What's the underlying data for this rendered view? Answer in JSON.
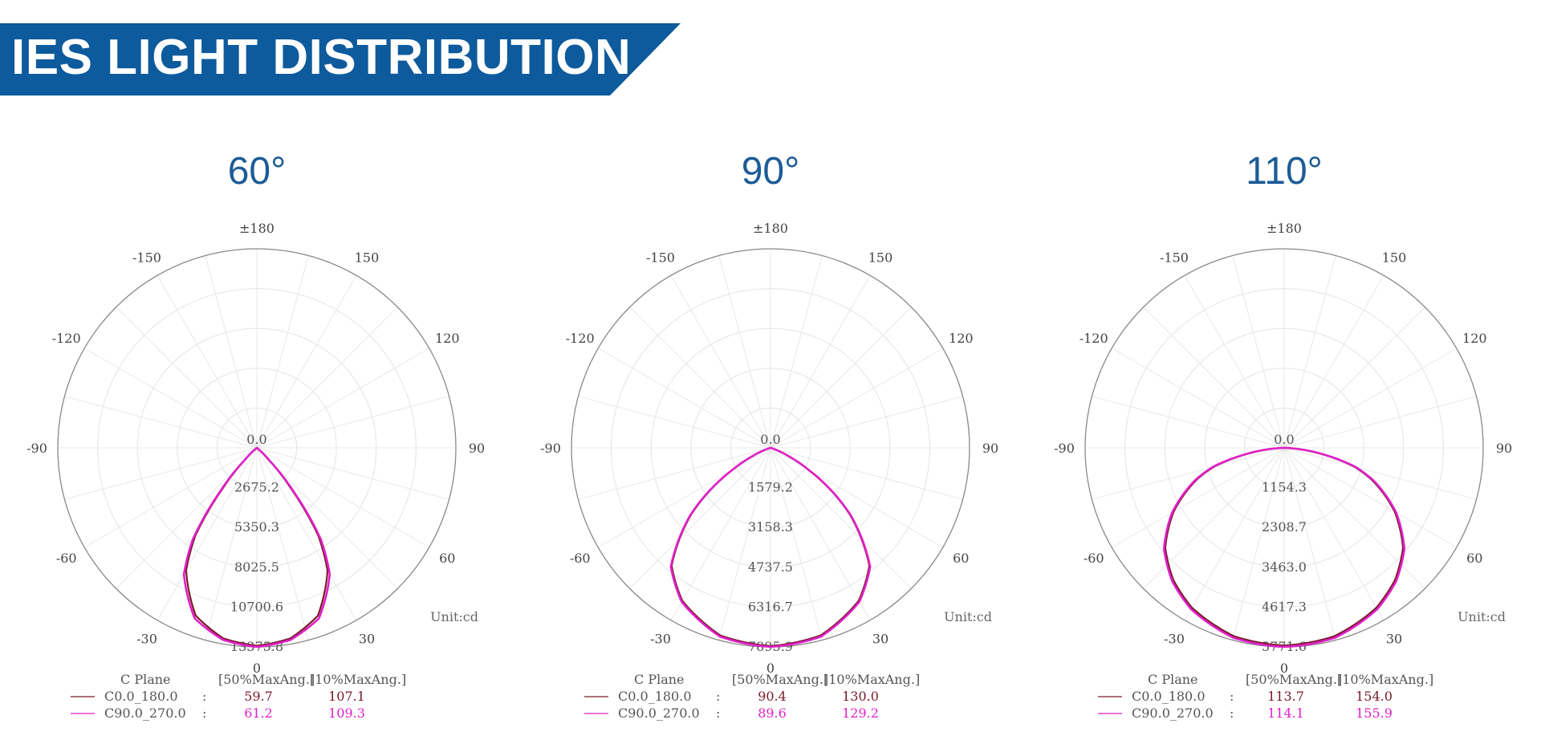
{
  "header": {
    "title": "IES LIGHT DISTRIBUTION"
  },
  "colors": {
    "banner": "#0d5a9c",
    "c0_series": "#7a1a2a",
    "c90_series": "#e020c8",
    "title_blue": "#1d5c96"
  },
  "chart_data": [
    {
      "type": "polar",
      "title": "60°",
      "angle_labels": [
        "±180",
        "150",
        "120",
        "90",
        "60",
        "30",
        "0",
        "-30",
        "-60",
        "-90",
        "-120",
        "-150"
      ],
      "radial_ticks": [
        "0.0",
        "2675.2",
        "5350.3",
        "8025.5",
        "10700.6",
        "13375.8"
      ],
      "rmax": 13375.8,
      "unit": "Unit:cd",
      "legend": {
        "header": [
          "C Plane",
          "[50%MaxAng.]",
          "[10%MaxAng.]"
        ],
        "rows": [
          {
            "name": "C0.0_180.0",
            "sep": ":",
            "half": "59.7",
            "tenth": "107.1"
          },
          {
            "name": "C90.0_270.0",
            "sep": ":",
            "half": "61.2",
            "tenth": "109.3"
          }
        ]
      },
      "series": [
        {
          "name": "C0.0_180.0",
          "curve": [
            [
              0,
              13300
            ],
            [
              10,
              13000
            ],
            [
              20,
              12000
            ],
            [
              30,
              9500
            ],
            [
              35,
              7200
            ],
            [
              40,
              3600
            ],
            [
              45,
              1000
            ],
            [
              50,
              0
            ]
          ]
        },
        {
          "name": "C90.0_270.0",
          "curve": [
            [
              0,
              13375
            ],
            [
              10,
              13100
            ],
            [
              20,
              12200
            ],
            [
              30,
              9800
            ],
            [
              35,
              7500
            ],
            [
              40,
              3900
            ],
            [
              45,
              1200
            ],
            [
              51,
              0
            ]
          ]
        }
      ]
    },
    {
      "type": "polar",
      "title": "90°",
      "angle_labels": [
        "±180",
        "150",
        "120",
        "90",
        "60",
        "30",
        "0",
        "-30",
        "-60",
        "-90",
        "-120",
        "-150"
      ],
      "radial_ticks": [
        "0.0",
        "1579.2",
        "3158.3",
        "4737.5",
        "6316.7",
        "7895.9"
      ],
      "rmax": 7895.9,
      "unit": "Unit:cd",
      "legend": {
        "header": [
          "C Plane",
          "[50%MaxAng.]",
          "[10%MaxAng.]"
        ],
        "rows": [
          {
            "name": "C0.0_180.0",
            "sep": ":",
            "half": "90.4",
            "tenth": "130.0"
          },
          {
            "name": "C90.0_270.0",
            "sep": ":",
            "half": "89.6",
            "tenth": "129.2"
          }
        ]
      },
      "series": [
        {
          "name": "C0.0_180.0",
          "curve": [
            [
              0,
              7860
            ],
            [
              15,
              7700
            ],
            [
              30,
              7000
            ],
            [
              40,
              6100
            ],
            [
              50,
              4100
            ],
            [
              55,
              2900
            ],
            [
              60,
              1700
            ],
            [
              65,
              800
            ],
            [
              70,
              200
            ],
            [
              75,
              0
            ]
          ]
        },
        {
          "name": "C90.0_270.0",
          "curve": [
            [
              0,
              7895
            ],
            [
              15,
              7750
            ],
            [
              30,
              7050
            ],
            [
              40,
              6150
            ],
            [
              50,
              4150
            ],
            [
              55,
              2950
            ],
            [
              60,
              1750
            ],
            [
              65,
              850
            ],
            [
              70,
              250
            ],
            [
              75,
              0
            ]
          ]
        }
      ]
    },
    {
      "type": "polar",
      "title": "110°",
      "angle_labels": [
        "±180",
        "150",
        "120",
        "90",
        "60",
        "30",
        "0",
        "-30",
        "-60",
        "-90",
        "-120",
        "-150"
      ],
      "radial_ticks": [
        "0.0",
        "1154.3",
        "2308.7",
        "3463.0",
        "4617.3",
        "5771.6"
      ],
      "rmax": 5771.6,
      "unit": "Unit:cd",
      "legend": {
        "header": [
          "C Plane",
          "[50%MaxAng.]",
          "[10%MaxAng.]"
        ],
        "rows": [
          {
            "name": "C0.0_180.0",
            "sep": ":",
            "half": "113.7",
            "tenth": "154.0"
          },
          {
            "name": "C90.0_270.0",
            "sep": ":",
            "half": "114.1",
            "tenth": "155.9"
          }
        ]
      },
      "series": [
        {
          "name": "C0.0_180.0",
          "curve": [
            [
              0,
              5730
            ],
            [
              15,
              5650
            ],
            [
              30,
              5350
            ],
            [
              40,
              5000
            ],
            [
              50,
              4500
            ],
            [
              60,
              3700
            ],
            [
              70,
              2700
            ],
            [
              75,
              2100
            ],
            [
              80,
              1200
            ],
            [
              85,
              400
            ],
            [
              88,
              0
            ]
          ]
        },
        {
          "name": "C90.0_270.0",
          "curve": [
            [
              0,
              5771
            ],
            [
              15,
              5700
            ],
            [
              30,
              5400
            ],
            [
              40,
              5050
            ],
            [
              50,
              4550
            ],
            [
              60,
              3750
            ],
            [
              70,
              2750
            ],
            [
              75,
              2150
            ],
            [
              80,
              1250
            ],
            [
              85,
              450
            ],
            [
              89,
              0
            ]
          ]
        }
      ]
    }
  ]
}
